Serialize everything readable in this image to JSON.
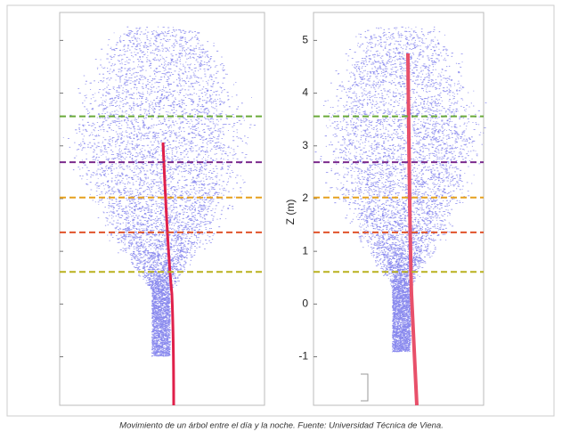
{
  "chart_data": {
    "type": "point-cloud",
    "ylabel": "Z (m)",
    "ylim": [
      -1.92,
      5.53
    ],
    "yticks": [
      -1,
      0,
      1,
      2,
      3,
      4,
      5
    ],
    "levels": [
      {
        "value": 3.56,
        "color": "#6aaa3a"
      },
      {
        "value": 2.69,
        "color": "#7b2a8c"
      },
      {
        "value": 2.02,
        "color": "#e6a11f"
      },
      {
        "value": 1.36,
        "color": "#e0532b"
      },
      {
        "value": 0.61,
        "color": "#b9b11e"
      }
    ]
  },
  "caption": "Movimiento de un árbol entre el día y la noche. Fuente: Universidad Técnica de Viena."
}
